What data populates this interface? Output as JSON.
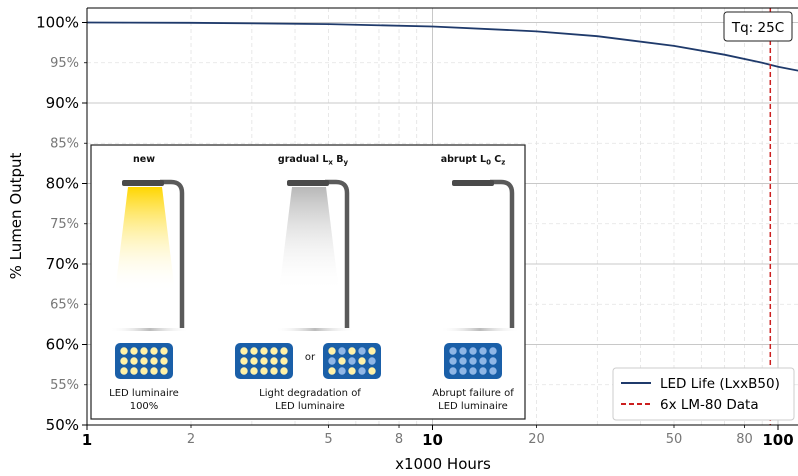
{
  "chart_data": {
    "type": "line",
    "xscale": "log",
    "xlabel": "x1000 Hours",
    "ylabel": "% Lumen Output",
    "xlim": [
      1,
      115
    ],
    "ylim": [
      50,
      101.8
    ],
    "x_major_ticks": [
      {
        "value": 1,
        "label": "1"
      },
      {
        "value": 10,
        "label": "10"
      },
      {
        "value": 100,
        "label": "100"
      }
    ],
    "x_minor_ticks": [
      {
        "value": 2,
        "label": "2"
      },
      {
        "value": 5,
        "label": "5"
      },
      {
        "value": 8,
        "label": "8"
      },
      {
        "value": 20,
        "label": "20"
      },
      {
        "value": 50,
        "label": "50"
      },
      {
        "value": 80,
        "label": "80"
      }
    ],
    "x_grid_major": [
      1,
      10,
      100
    ],
    "x_grid_minor": [
      2,
      3,
      4,
      5,
      6,
      7,
      8,
      9,
      20,
      30,
      40,
      50,
      60,
      70,
      80,
      90
    ],
    "y_major_ticks": [
      {
        "value": 100,
        "label": "100%"
      },
      {
        "value": 90,
        "label": "90%"
      },
      {
        "value": 80,
        "label": "80%"
      },
      {
        "value": 70,
        "label": "70%"
      },
      {
        "value": 60,
        "label": "60%"
      },
      {
        "value": 50,
        "label": "50%"
      }
    ],
    "y_minor_ticks": [
      {
        "value": 95,
        "label": "95%"
      },
      {
        "value": 85,
        "label": "85%"
      },
      {
        "value": 75,
        "label": "75%"
      },
      {
        "value": 65,
        "label": "65%"
      },
      {
        "value": 55,
        "label": "55%"
      }
    ],
    "series": [
      {
        "name": "LED Life (LxxB50)",
        "color": "#1f3a6b",
        "style": "solid",
        "x": [
          1,
          2,
          5,
          10,
          20,
          30,
          50,
          70,
          90,
          100,
          115
        ],
        "y": [
          100,
          99.96,
          99.8,
          99.5,
          98.9,
          98.3,
          97.1,
          96.0,
          95.0,
          94.5,
          94.0
        ]
      },
      {
        "name": "6x LM-80 Data",
        "color": "#cc1f1f",
        "style": "dashed",
        "vline_x": 95
      }
    ],
    "annotation_box": "Tq: 25C",
    "legend_position": "bottom-right",
    "grid": true
  },
  "inset": {
    "panels": [
      {
        "heading_main": "new",
        "caption_lines": [
          "LED luminaire",
          "100%"
        ]
      },
      {
        "heading_main": "gradual L",
        "heading_sub1": "x",
        "heading_mid": " B",
        "heading_sub2": "y",
        "caption_lines": [
          "Light degradation of",
          "LED luminaire"
        ],
        "or_label": "or"
      },
      {
        "heading_main": "abrupt L",
        "heading_sub1": "0",
        "heading_mid": " C",
        "heading_sub2": "z",
        "caption_lines": [
          "Abrupt failure of",
          "LED luminaire"
        ]
      }
    ],
    "colors": {
      "module_blue": "#1a5fa8",
      "led_on": "#fff2a8",
      "led_off": "#8fb6e6",
      "pole": "#5a5a5a",
      "beam": "#ffd600"
    }
  }
}
